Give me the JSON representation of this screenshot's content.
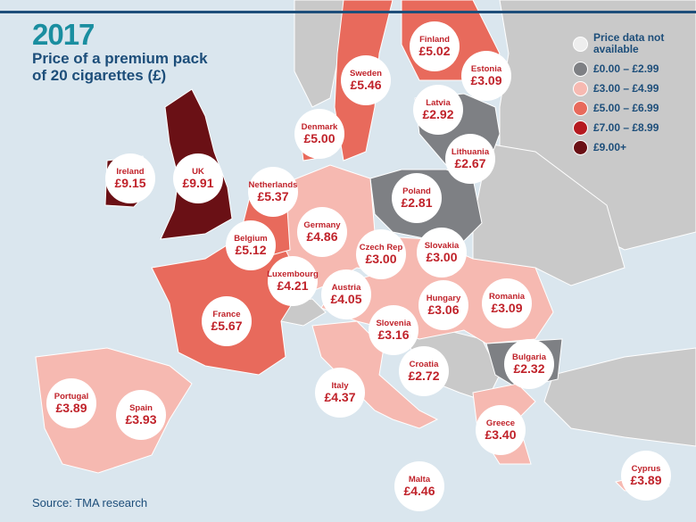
{
  "title": {
    "year": "2017",
    "subtitle": "Price of a premium pack of 20 cigarettes (£)"
  },
  "source": "Source: TMA research",
  "colors": {
    "sea": "#dae6ee",
    "na": "#c9c9c9",
    "band1": "#7e8084",
    "band2": "#f6b9b1",
    "band3": "#e86a5c",
    "band4": "#b51a20",
    "band5": "#6a1015",
    "title": "#1a8ea0",
    "navy": "#1d4e7a",
    "label": "#c0222a"
  },
  "legend": [
    {
      "label": "Price data not available",
      "color": "#eeeeee"
    },
    {
      "label": "£0.00 – £2.99",
      "color": "#7e8084"
    },
    {
      "label": "£3.00 – £4.99",
      "color": "#f6b9b1"
    },
    {
      "label": "£5.00 – £6.99",
      "color": "#e86a5c"
    },
    {
      "label": "£7.00 – £8.99",
      "color": "#b51a20"
    },
    {
      "label": "£9.00+",
      "color": "#6a1015"
    }
  ],
  "countries": [
    {
      "name": "Finland",
      "price": "£5.02"
    },
    {
      "name": "Estonia",
      "price": "£3.09"
    },
    {
      "name": "Sweden",
      "price": "£5.46"
    },
    {
      "name": "Latvia",
      "price": "£2.92"
    },
    {
      "name": "Denmark",
      "price": "£5.00"
    },
    {
      "name": "Lithuania",
      "price": "£2.67"
    },
    {
      "name": "Ireland",
      "price": "£9.15"
    },
    {
      "name": "UK",
      "price": "£9.91"
    },
    {
      "name": "Netherlands",
      "price": "£5.37"
    },
    {
      "name": "Poland",
      "price": "£2.81"
    },
    {
      "name": "Germany",
      "price": "£4.86"
    },
    {
      "name": "Belgium",
      "price": "£5.12"
    },
    {
      "name": "Czech Rep",
      "price": "£3.00"
    },
    {
      "name": "Slovakia",
      "price": "£3.00"
    },
    {
      "name": "Luxembourg",
      "price": "£4.21"
    },
    {
      "name": "Austria",
      "price": "£4.05"
    },
    {
      "name": "Hungary",
      "price": "£3.06"
    },
    {
      "name": "Romania",
      "price": "£3.09"
    },
    {
      "name": "France",
      "price": "£5.67"
    },
    {
      "name": "Slovenia",
      "price": "£3.16"
    },
    {
      "name": "Bulgaria",
      "price": "£2.32"
    },
    {
      "name": "Croatia",
      "price": "£2.72"
    },
    {
      "name": "Italy",
      "price": "£4.37"
    },
    {
      "name": "Portugal",
      "price": "£3.89"
    },
    {
      "name": "Spain",
      "price": "£3.93"
    },
    {
      "name": "Greece",
      "price": "£3.40"
    },
    {
      "name": "Malta",
      "price": "£4.46"
    },
    {
      "name": "Cyprus",
      "price": "£3.89"
    }
  ]
}
